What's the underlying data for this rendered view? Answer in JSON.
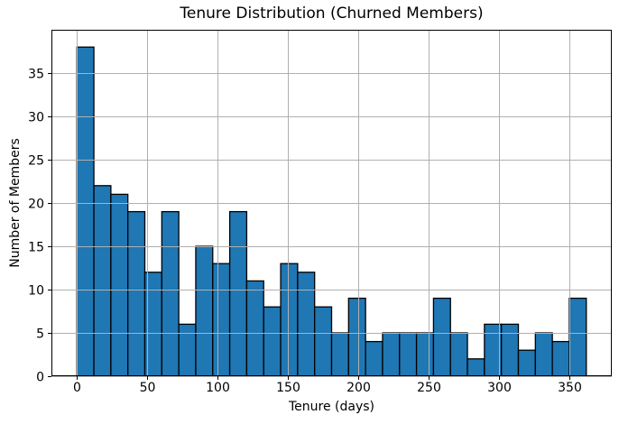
{
  "chart_data": {
    "type": "bar",
    "subtype": "histogram",
    "title": "Tenure Distribution (Churned Members)",
    "xlabel": "Tenure (days)",
    "ylabel": "Number of Members",
    "bins": 30,
    "bin_start": 0,
    "bin_end": 362,
    "counts": [
      38,
      22,
      21,
      19,
      12,
      19,
      6,
      15,
      13,
      19,
      11,
      8,
      13,
      12,
      8,
      5,
      9,
      4,
      5,
      5,
      5,
      9,
      5,
      2,
      6,
      6,
      3,
      5,
      4,
      9
    ],
    "x_ticks": [
      0,
      50,
      100,
      150,
      200,
      250,
      300,
      350
    ],
    "y_ticks": [
      0,
      5,
      10,
      15,
      20,
      25,
      30,
      35
    ],
    "xlim": [
      -18.1,
      380.1
    ],
    "ylim": [
      0,
      40
    ],
    "grid": true,
    "grid_above_bars": true,
    "legend": null,
    "colors": {
      "bar_fill": "#1f77b4",
      "bar_edge": "#000000",
      "grid": "#b0b0b0",
      "spine": "#000000",
      "background": "#ffffff",
      "text": "#000000"
    }
  }
}
